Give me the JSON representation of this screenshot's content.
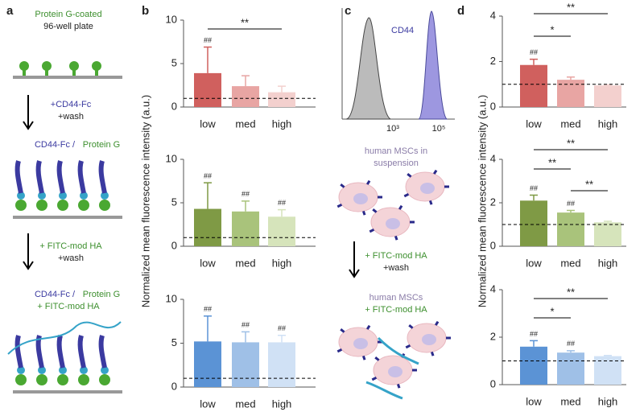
{
  "panel_a": {
    "letter": "a",
    "top": [
      "Protein G-coated",
      "96-well plate"
    ],
    "step1": [
      "+CD44-Fc",
      "+wash"
    ],
    "state1": [
      "CD44-Fc / ",
      "Protein G"
    ],
    "step2": [
      "+ FITC-mod HA",
      "+wash"
    ],
    "state2": [
      "CD44-Fc / ",
      "Protein G",
      "+ FITC-mod HA"
    ]
  },
  "panel_b": {
    "letter": "b",
    "ylabel": "Normalized  mean fluorescence intensity (a.u.)"
  },
  "panel_c": {
    "letter": "c",
    "marker": "CD44",
    "xticks": [
      "10³",
      "10⁵"
    ],
    "cells1": [
      "human MSCs in",
      "suspension"
    ],
    "step": [
      "+ FITC-mod HA",
      "+wash"
    ],
    "cells2": [
      "human MSCs",
      "+ FITC-mod HA"
    ]
  },
  "panel_d": {
    "letter": "d",
    "ylabel": "Normalized  mean fluorescence intensity (a.u.)"
  },
  "chart_data": [
    {
      "type": "bar",
      "categories": [
        "low",
        "med",
        "high"
      ],
      "values": [
        3.9,
        2.4,
        1.7
      ],
      "errors": [
        3.0,
        1.2,
        0.7
      ],
      "colors": [
        "#d0605e",
        "#e8a5a3",
        "#f3d0ce"
      ],
      "ylim": [
        0,
        10
      ],
      "yticks": [
        0,
        5,
        10
      ],
      "reference_line": 1,
      "value_annotations": [
        "##",
        null,
        null
      ],
      "significance": [
        {
          "from": 0,
          "to": 2,
          "label": "**"
        }
      ]
    },
    {
      "type": "bar",
      "categories": [
        "low",
        "med",
        "high"
      ],
      "values": [
        4.3,
        4.0,
        3.4
      ],
      "errors": [
        3.0,
        1.2,
        0.8
      ],
      "colors": [
        "#7f9a45",
        "#a9c37b",
        "#d6e4bb"
      ],
      "ylim": [
        0,
        10
      ],
      "yticks": [
        0,
        5,
        10
      ],
      "reference_line": 1,
      "value_annotations": [
        "##",
        "##",
        "##"
      ],
      "significance": []
    },
    {
      "type": "bar",
      "categories": [
        "low",
        "med",
        "high"
      ],
      "values": [
        5.2,
        5.1,
        5.1
      ],
      "errors": [
        2.9,
        1.2,
        0.8
      ],
      "colors": [
        "#5b93d5",
        "#9fc0e7",
        "#d0e1f5"
      ],
      "ylim": [
        0,
        10
      ],
      "yticks": [
        0,
        5,
        10
      ],
      "reference_line": 1,
      "value_annotations": [
        "##",
        "##",
        "##"
      ],
      "significance": []
    },
    {
      "type": "bar",
      "categories": [
        "low",
        "med",
        "high"
      ],
      "values": [
        1.85,
        1.2,
        0.95
      ],
      "errors": [
        0.25,
        0.12,
        0.03
      ],
      "colors": [
        "#d0605e",
        "#e8a5a3",
        "#f3d0ce"
      ],
      "ylim": [
        0,
        4
      ],
      "yticks": [
        0,
        2,
        4
      ],
      "reference_line": 1,
      "value_annotations": [
        "##",
        null,
        null
      ],
      "significance": [
        {
          "from": 0,
          "to": 1,
          "label": "*"
        },
        {
          "from": 0,
          "to": 2,
          "label": "**"
        }
      ]
    },
    {
      "type": "bar",
      "categories": [
        "low",
        "med",
        "high"
      ],
      "values": [
        2.1,
        1.55,
        1.1
      ],
      "errors": [
        0.25,
        0.1,
        0.05
      ],
      "colors": [
        "#7f9a45",
        "#a9c37b",
        "#d6e4bb"
      ],
      "ylim": [
        0,
        4
      ],
      "yticks": [
        0,
        2,
        4
      ],
      "reference_line": 1,
      "value_annotations": [
        "##",
        "##",
        null
      ],
      "significance": [
        {
          "from": 0,
          "to": 1,
          "label": "**"
        },
        {
          "from": 0,
          "to": 2,
          "label": "**"
        },
        {
          "from": 1,
          "to": 2,
          "label": "**"
        }
      ]
    },
    {
      "type": "bar",
      "categories": [
        "low",
        "med",
        "high"
      ],
      "values": [
        1.6,
        1.35,
        1.2
      ],
      "errors": [
        0.25,
        0.08,
        0.03
      ],
      "colors": [
        "#5b93d5",
        "#9fc0e7",
        "#d0e1f5"
      ],
      "ylim": [
        0,
        4
      ],
      "yticks": [
        0,
        2,
        4
      ],
      "reference_line": 1,
      "value_annotations": [
        "##",
        "##",
        null
      ],
      "significance": [
        {
          "from": 0,
          "to": 1,
          "label": "*"
        },
        {
          "from": 0,
          "to": 2,
          "label": "**"
        }
      ]
    }
  ]
}
